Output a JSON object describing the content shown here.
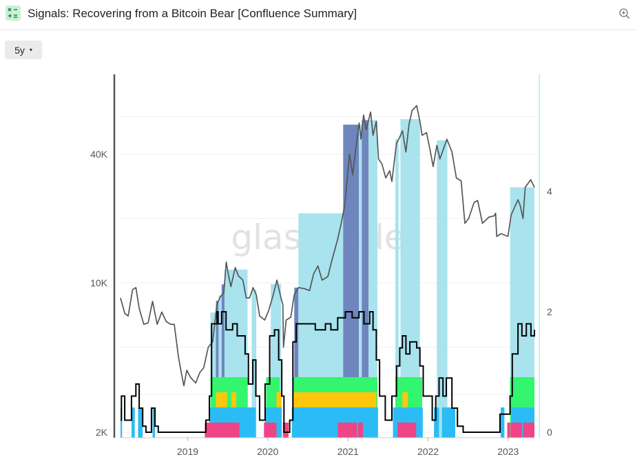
{
  "header": {
    "title": "Signals: Recovering from a Bitcoin Bear [Confluence Summary]",
    "app_icon": "formula-icon",
    "zoom_icon": "zoom-in-icon"
  },
  "controls": {
    "range_label": "5y",
    "range_caret": "▾"
  },
  "watermark": "glassnode",
  "colors": {
    "price": "#555555",
    "signal_light": "#a8e3ee",
    "signal_dark": "#6f85bd",
    "green": "#33f56e",
    "yellow": "#ffc70c",
    "blue": "#2cbcf5",
    "pink": "#ef4486",
    "confluence": "#000000"
  },
  "chart_data": {
    "type": "line",
    "x_ticks": [
      "2019",
      "2020",
      "2021",
      "2022",
      "2023"
    ],
    "left_axis": {
      "scale": "log",
      "ticks": [
        "2K",
        "10K",
        "40K"
      ],
      "tick_values": [
        2000,
        10000,
        40000
      ]
    },
    "right_axis": {
      "ticks": [
        "0",
        "2",
        "4"
      ],
      "tick_values": [
        0,
        2,
        4
      ],
      "range": [
        0,
        5.7
      ]
    },
    "series": [
      {
        "type": "line",
        "axis": "left",
        "color": "#555555",
        "points": [
          [
            "2018-03-01",
            8500
          ],
          [
            "2018-03-20",
            7200
          ],
          [
            "2018-04-05",
            7000
          ],
          [
            "2018-04-25",
            9300
          ],
          [
            "2018-05-10",
            9500
          ],
          [
            "2018-05-25",
            7600
          ],
          [
            "2018-06-15",
            6400
          ],
          [
            "2018-07-05",
            6500
          ],
          [
            "2018-07-25",
            8200
          ],
          [
            "2018-08-15",
            6400
          ],
          [
            "2018-09-05",
            7300
          ],
          [
            "2018-09-25",
            6600
          ],
          [
            "2018-10-15",
            6400
          ],
          [
            "2018-11-01",
            6400
          ],
          [
            "2018-11-20",
            4500
          ],
          [
            "2018-12-05",
            3700
          ],
          [
            "2018-12-15",
            3300
          ],
          [
            "2018-12-28",
            3900
          ],
          [
            "2019-01-15",
            3600
          ],
          [
            "2019-02-07",
            3400
          ],
          [
            "2019-02-25",
            3800
          ],
          [
            "2019-03-15",
            4000
          ],
          [
            "2019-04-05",
            5000
          ],
          [
            "2019-04-25",
            5300
          ],
          [
            "2019-05-14",
            7900
          ],
          [
            "2019-05-30",
            8600
          ],
          [
            "2019-06-15",
            9000
          ],
          [
            "2019-06-26",
            12500
          ],
          [
            "2019-07-05",
            11000
          ],
          [
            "2019-07-17",
            9600
          ],
          [
            "2019-08-06",
            11800
          ],
          [
            "2019-08-20",
            10800
          ],
          [
            "2019-09-10",
            10300
          ],
          [
            "2019-09-25",
            8500
          ],
          [
            "2019-10-10",
            8500
          ],
          [
            "2019-10-26",
            9500
          ],
          [
            "2019-11-10",
            8800
          ],
          [
            "2019-11-25",
            7000
          ],
          [
            "2019-12-18",
            6700
          ],
          [
            "2020-01-05",
            7400
          ],
          [
            "2020-01-25",
            8700
          ],
          [
            "2020-02-12",
            10300
          ],
          [
            "2020-02-28",
            8700
          ],
          [
            "2020-03-10",
            7900
          ],
          [
            "2020-03-13",
            5000
          ],
          [
            "2020-03-25",
            6700
          ],
          [
            "2020-04-15",
            6900
          ],
          [
            "2020-05-01",
            8800
          ],
          [
            "2020-05-20",
            9500
          ],
          [
            "2020-06-15",
            9400
          ],
          [
            "2020-07-10",
            9200
          ],
          [
            "2020-07-28",
            11000
          ],
          [
            "2020-08-17",
            12000
          ],
          [
            "2020-09-05",
            10300
          ],
          [
            "2020-10-01",
            10700
          ],
          [
            "2020-10-21",
            12900
          ],
          [
            "2020-11-15",
            16000
          ],
          [
            "2020-12-01",
            19000
          ],
          [
            "2020-12-17",
            23000
          ],
          [
            "2021-01-08",
            40000
          ],
          [
            "2021-01-22",
            32000
          ],
          [
            "2021-02-10",
            46000
          ],
          [
            "2021-02-21",
            56000
          ],
          [
            "2021-03-01",
            47000
          ],
          [
            "2021-03-13",
            61000
          ],
          [
            "2021-03-25",
            52000
          ],
          [
            "2021-04-14",
            63000
          ],
          [
            "2021-04-25",
            49000
          ],
          [
            "2021-05-10",
            57000
          ],
          [
            "2021-05-20",
            38000
          ],
          [
            "2021-06-05",
            36000
          ],
          [
            "2021-06-22",
            31000
          ],
          [
            "2021-07-10",
            33500
          ],
          [
            "2021-07-20",
            29800
          ],
          [
            "2021-08-10",
            45000
          ],
          [
            "2021-08-25",
            48000
          ],
          [
            "2021-09-06",
            51500
          ],
          [
            "2021-09-22",
            41000
          ],
          [
            "2021-10-06",
            55000
          ],
          [
            "2021-10-20",
            64000
          ],
          [
            "2021-11-10",
            67500
          ],
          [
            "2021-11-25",
            57000
          ],
          [
            "2021-12-05",
            49000
          ],
          [
            "2021-12-25",
            50500
          ],
          [
            "2022-01-10",
            42000
          ],
          [
            "2022-01-24",
            35000
          ],
          [
            "2022-02-10",
            44000
          ],
          [
            "2022-02-24",
            38000
          ],
          [
            "2022-03-28",
            47000
          ],
          [
            "2022-04-20",
            41000
          ],
          [
            "2022-05-10",
            31000
          ],
          [
            "2022-06-01",
            30000
          ],
          [
            "2022-06-18",
            19000
          ],
          [
            "2022-07-05",
            20000
          ],
          [
            "2022-07-30",
            23800
          ],
          [
            "2022-08-15",
            24300
          ],
          [
            "2022-09-06",
            19000
          ],
          [
            "2022-10-05",
            20300
          ],
          [
            "2022-10-30",
            20600
          ],
          [
            "2022-11-05",
            21200
          ],
          [
            "2022-11-10",
            16500
          ],
          [
            "2022-11-30",
            17000
          ],
          [
            "2022-12-31",
            16500
          ],
          [
            "2023-01-15",
            20800
          ],
          [
            "2023-02-15",
            24500
          ],
          [
            "2023-02-25",
            23000
          ],
          [
            "2023-03-10",
            20000
          ],
          [
            "2023-03-20",
            28000
          ],
          [
            "2023-04-14",
            30400
          ],
          [
            "2023-05-01",
            28000
          ]
        ]
      }
    ],
    "signal_bands": [
      [
        "2019-04-15",
        "2019-05-10",
        "light"
      ],
      [
        "2019-05-10",
        "2019-05-22",
        "dark"
      ],
      [
        "2019-05-22",
        "2019-06-05",
        "light"
      ],
      [
        "2019-06-05",
        "2019-06-18",
        "dark"
      ],
      [
        "2019-06-18",
        "2019-10-01",
        "light"
      ],
      [
        "2019-10-20",
        "2019-11-10",
        "light"
      ],
      [
        "2020-01-15",
        "2020-03-02",
        "light"
      ],
      [
        "2020-05-01",
        "2020-05-20",
        "dark"
      ],
      [
        "2020-05-20",
        "2020-12-10",
        "light"
      ],
      [
        "2020-12-10",
        "2021-02-20",
        "dark"
      ],
      [
        "2021-02-20",
        "2021-03-05",
        "light"
      ],
      [
        "2021-03-05",
        "2021-04-05",
        "dark"
      ],
      [
        "2021-04-05",
        "2021-05-15",
        "light"
      ],
      [
        "2021-08-05",
        "2021-08-20",
        "light"
      ],
      [
        "2021-08-28",
        "2021-11-25",
        "light"
      ],
      [
        "2022-02-10",
        "2022-03-30",
        "light"
      ],
      [
        "2023-01-10",
        "2023-05-01",
        "light"
      ]
    ],
    "confluence_blocks": {
      "green": [
        [
          "2019-04-15",
          "2019-10-02"
        ],
        [
          "2019-12-25",
          "2020-02-25"
        ],
        [
          "2020-04-25",
          "2021-05-15"
        ],
        [
          "2021-08-05",
          "2021-12-05"
        ],
        [
          "2023-01-10",
          "2023-05-01"
        ]
      ],
      "yellow": [
        [
          "2019-05-10",
          "2019-06-30"
        ],
        [
          "2019-07-20",
          "2019-08-10"
        ],
        [
          "2020-02-10",
          "2020-03-05"
        ],
        [
          "2020-04-25",
          "2021-05-10"
        ],
        [
          "2021-09-06",
          "2021-10-01"
        ]
      ],
      "blue": [
        [
          "2018-03-01",
          "2018-03-08"
        ],
        [
          "2018-04-20",
          "2018-05-05"
        ],
        [
          "2018-05-20",
          "2018-06-10"
        ],
        [
          "2018-07-25",
          "2018-08-05"
        ],
        [
          "2019-04-10",
          "2019-11-08"
        ],
        [
          "2019-12-20",
          "2020-03-05"
        ],
        [
          "2020-04-20",
          "2021-05-18"
        ],
        [
          "2021-07-25",
          "2021-12-08"
        ],
        [
          "2022-01-28",
          "2022-02-20"
        ],
        [
          "2022-03-05",
          "2022-05-05"
        ],
        [
          "2022-11-28",
          "2022-12-15"
        ],
        [
          "2023-01-15",
          "2023-05-01"
        ]
      ],
      "pink": [
        [
          "2019-03-20",
          "2019-08-25"
        ],
        [
          "2019-12-15",
          "2020-02-10"
        ],
        [
          "2020-03-10",
          "2020-04-05"
        ],
        [
          "2020-11-15",
          "2021-02-10"
        ],
        [
          "2021-02-15",
          "2021-03-10"
        ],
        [
          "2021-08-15",
          "2021-11-08"
        ],
        [
          "2022-12-28",
          "2023-01-10"
        ],
        [
          "2023-01-12",
          "2023-03-05"
        ],
        [
          "2023-03-10",
          "2023-05-01"
        ]
      ]
    },
    "confluence_line": [
      [
        "2018-03-01",
        0.2
      ],
      [
        "2018-03-05",
        0.6
      ],
      [
        "2018-03-20",
        0.2
      ],
      [
        "2018-04-20",
        0.6
      ],
      [
        "2018-05-10",
        0.8
      ],
      [
        "2018-05-25",
        0.4
      ],
      [
        "2018-06-10",
        0.1
      ],
      [
        "2018-06-25",
        0
      ],
      [
        "2018-07-20",
        0.4
      ],
      [
        "2018-08-05",
        0.1
      ],
      [
        "2018-08-20",
        0
      ],
      [
        "2019-03-15",
        0
      ],
      [
        "2019-03-25",
        0.2
      ],
      [
        "2019-04-10",
        0.6
      ],
      [
        "2019-04-20",
        1.8
      ],
      [
        "2019-05-15",
        2.0
      ],
      [
        "2019-05-20",
        1.8
      ],
      [
        "2019-06-05",
        2.0
      ],
      [
        "2019-06-25",
        1.7
      ],
      [
        "2019-07-25",
        1.8
      ],
      [
        "2019-08-15",
        1.6
      ],
      [
        "2019-09-20",
        1.3
      ],
      [
        "2019-10-05",
        0.8
      ],
      [
        "2019-10-25",
        1.2
      ],
      [
        "2019-11-08",
        0.6
      ],
      [
        "2019-11-25",
        0.2
      ],
      [
        "2019-12-20",
        0.8
      ],
      [
        "2020-01-10",
        1.6
      ],
      [
        "2020-02-01",
        1.7
      ],
      [
        "2020-02-20",
        1.2
      ],
      [
        "2020-03-05",
        0.6
      ],
      [
        "2020-03-15",
        0
      ],
      [
        "2020-04-10",
        0.2
      ],
      [
        "2020-04-25",
        1.5
      ],
      [
        "2020-05-10",
        1.8
      ],
      [
        "2020-06-15",
        1.8
      ],
      [
        "2020-08-05",
        1.7
      ],
      [
        "2020-09-20",
        1.8
      ],
      [
        "2020-10-15",
        1.7
      ],
      [
        "2020-11-15",
        1.9
      ],
      [
        "2020-12-20",
        2.0
      ],
      [
        "2021-01-20",
        1.9
      ],
      [
        "2021-02-20",
        2.0
      ],
      [
        "2021-03-15",
        1.8
      ],
      [
        "2021-04-10",
        2.0
      ],
      [
        "2021-04-25",
        1.7
      ],
      [
        "2021-05-10",
        1.2
      ],
      [
        "2021-05-25",
        0.6
      ],
      [
        "2021-06-20",
        0.2
      ],
      [
        "2021-07-20",
        0.6
      ],
      [
        "2021-08-10",
        1.1
      ],
      [
        "2021-08-25",
        1.4
      ],
      [
        "2021-09-06",
        1.6
      ],
      [
        "2021-09-22",
        1.3
      ],
      [
        "2021-10-10",
        1.5
      ],
      [
        "2021-11-10",
        1.4
      ],
      [
        "2021-11-25",
        1.1
      ],
      [
        "2021-12-10",
        0.6
      ],
      [
        "2022-01-20",
        0.2
      ],
      [
        "2022-02-05",
        0.6
      ],
      [
        "2022-02-20",
        0.9
      ],
      [
        "2022-03-10",
        0.6
      ],
      [
        "2022-03-25",
        0.9
      ],
      [
        "2022-04-20",
        0.4
      ],
      [
        "2022-05-15",
        0.1
      ],
      [
        "2022-06-10",
        0
      ],
      [
        "2022-11-01",
        0
      ],
      [
        "2022-11-25",
        0.3
      ],
      [
        "2022-12-15",
        0.3
      ],
      [
        "2023-01-10",
        0.6
      ],
      [
        "2023-01-20",
        1.3
      ],
      [
        "2023-02-15",
        1.8
      ],
      [
        "2023-03-05",
        1.6
      ],
      [
        "2023-03-25",
        1.8
      ],
      [
        "2023-04-15",
        1.6
      ],
      [
        "2023-05-01",
        1.7
      ]
    ]
  }
}
